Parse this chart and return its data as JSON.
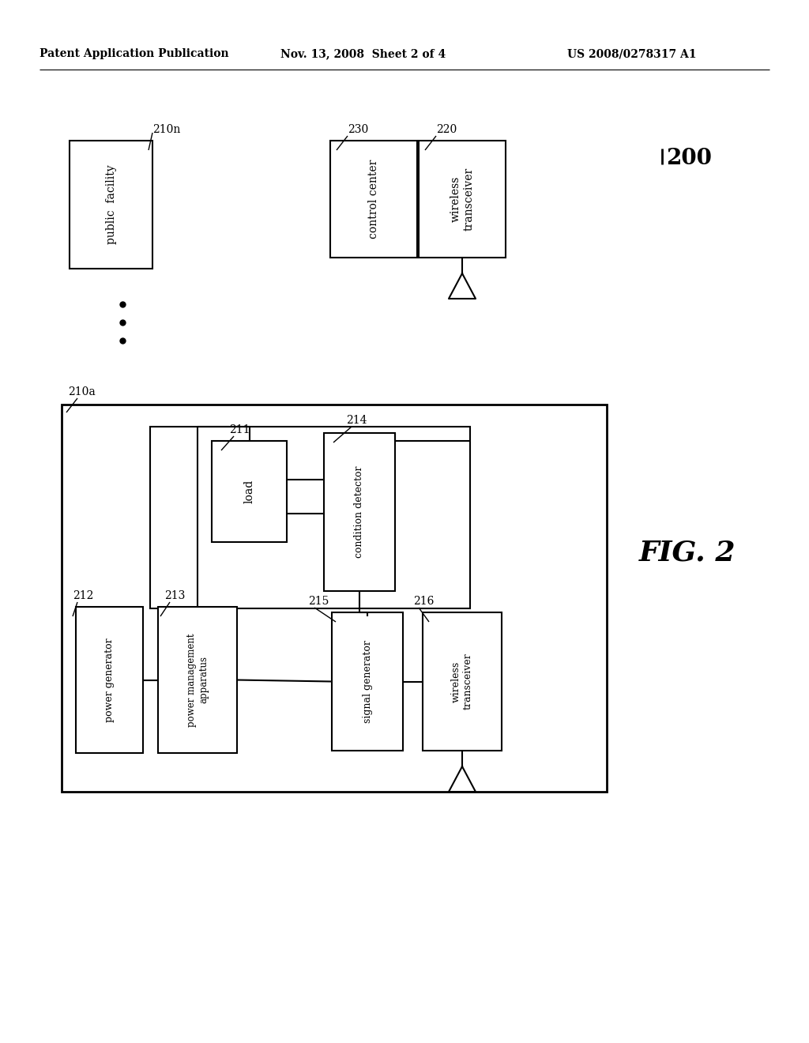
{
  "bg_color": "#ffffff",
  "header_left": "Patent Application Publication",
  "header_mid": "Nov. 13, 2008  Sheet 2 of 4",
  "header_right": "US 2008/0278317 A1",
  "fig_label": "FIG. 2",
  "ref_200": "200",
  "ref_210n": "210n",
  "ref_210a": "210a",
  "ref_212": "212",
  "ref_213": "213",
  "ref_211": "211",
  "ref_214": "214",
  "ref_215": "215",
  "ref_216": "216",
  "ref_220": "220",
  "ref_230": "230",
  "label_public_facility": "public  facility",
  "label_control_center": "control center",
  "label_wireless_transceiver_top": "wireless\ntransceiver",
  "label_power_generator": "power generator",
  "label_power_management": "power management\napparatus",
  "label_load": "load",
  "label_condition_detector": "condition detector",
  "label_signal_generator": "signal generator",
  "label_wireless_transceiver_bottom": "wireless\ntransceiver"
}
